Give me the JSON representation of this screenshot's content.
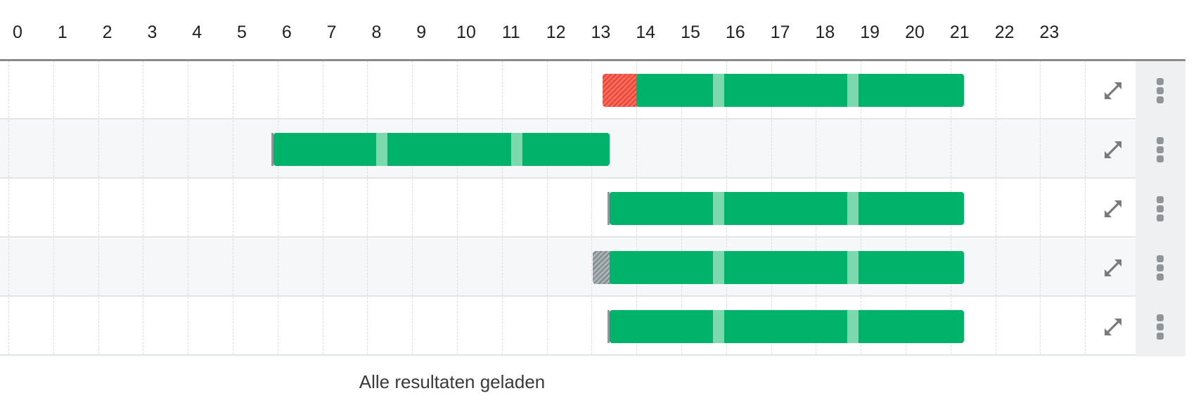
{
  "timeline": {
    "hours": [
      "0",
      "1",
      "2",
      "3",
      "4",
      "5",
      "6",
      "7",
      "8",
      "9",
      "10",
      "11",
      "12",
      "13",
      "14",
      "15",
      "16",
      "17",
      "18",
      "19",
      "20",
      "21",
      "22",
      "23"
    ]
  },
  "rows": [
    {
      "id": "row-1",
      "lead": "late",
      "start": 13.8,
      "end": 21.1,
      "breaks": [
        15.5,
        18.5
      ]
    },
    {
      "id": "row-2",
      "lead": "tick",
      "start": 5.7,
      "end": 13.2,
      "breaks": [
        8.0,
        11.0
      ]
    },
    {
      "id": "row-3",
      "lead": "tick",
      "start": 13.2,
      "end": 21.1,
      "breaks": [
        15.5,
        18.5
      ]
    },
    {
      "id": "row-4",
      "lead": "early",
      "start": 13.2,
      "end": 21.1,
      "breaks": [
        15.5,
        18.5
      ]
    },
    {
      "id": "row-5",
      "lead": "tick",
      "start": 13.2,
      "end": 21.1,
      "breaks": [
        15.5,
        18.5
      ]
    }
  ],
  "icons": {
    "expand": "expand-arrows-icon",
    "menu": "vertical-dots-icon"
  },
  "colors": {
    "shift": "#00b26a",
    "break": "#7ad9ae",
    "late": "#ef5a4a",
    "early": "#95a0a4",
    "icon": "#7a7a7a"
  },
  "footer": {
    "status": "Alle resultaten geladen"
  }
}
